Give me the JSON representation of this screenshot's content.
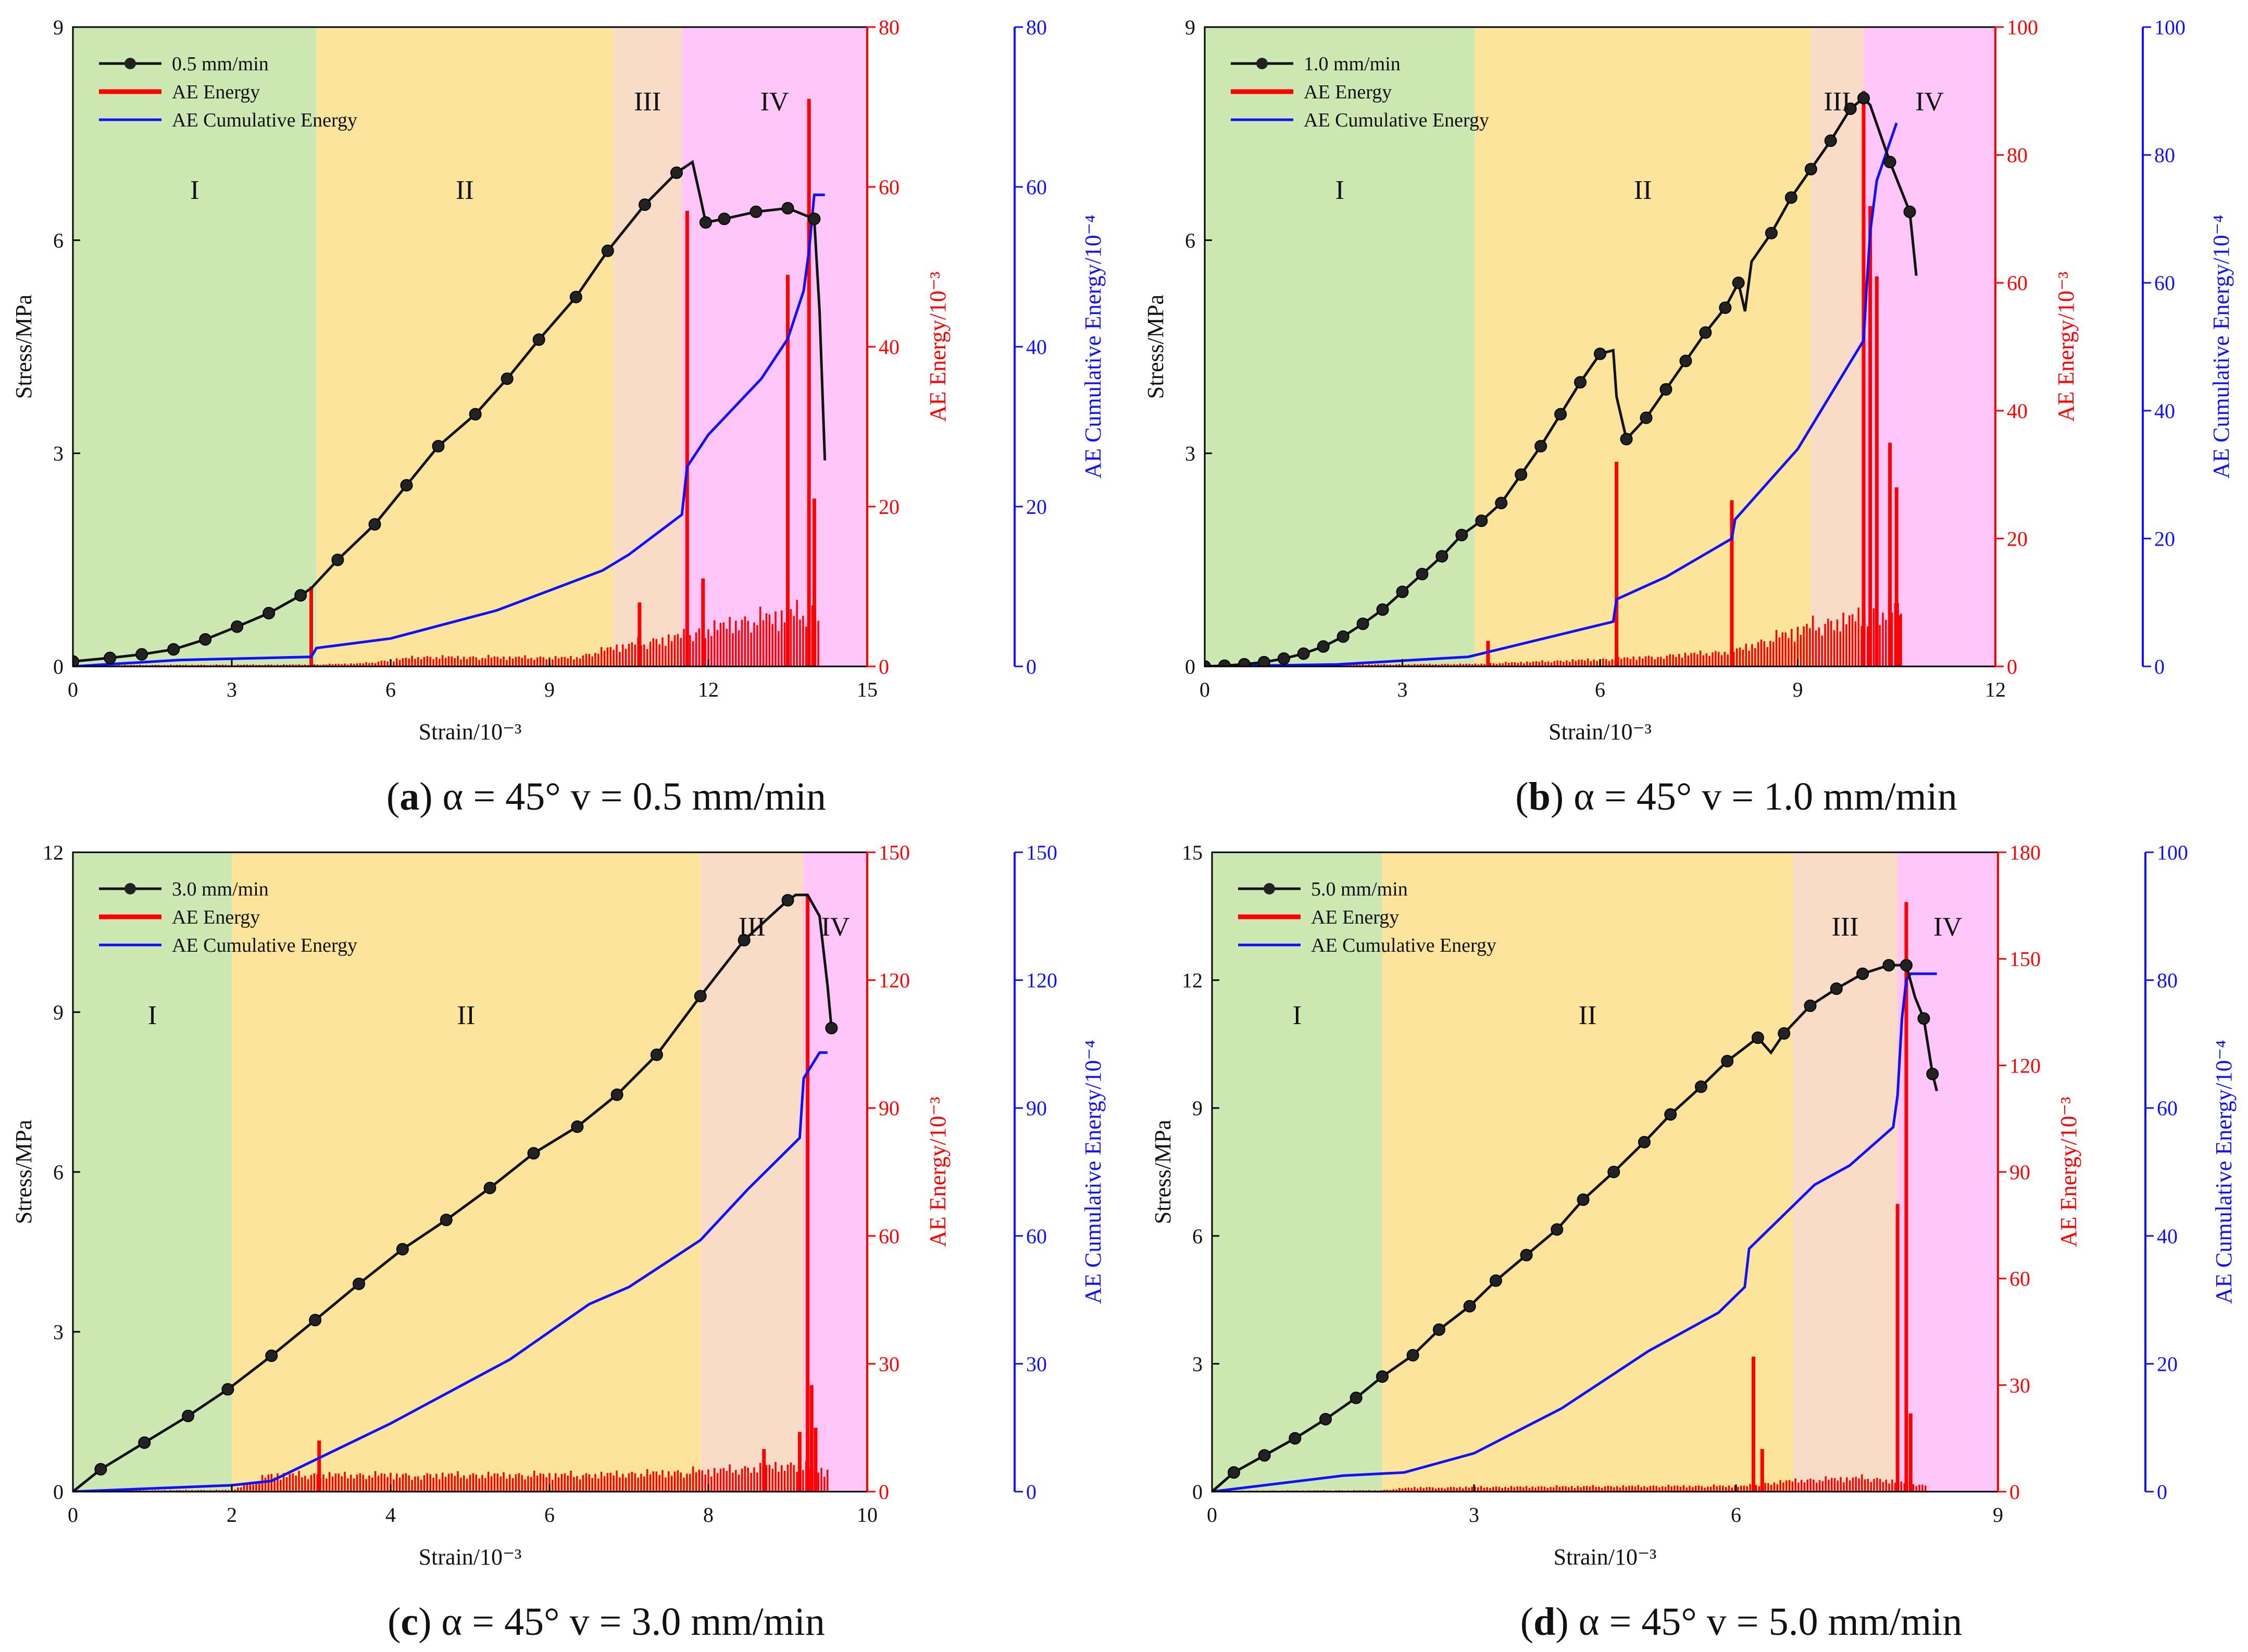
{
  "chart_data": [
    {
      "id": "a",
      "type": "line",
      "caption": {
        "letter": "a",
        "text": "α = 45° v = 0.5 mm/min"
      },
      "xlabel": "Strain/10⁻³",
      "ylabel": "Stress/MPa",
      "y2label": "AE Energy/10⁻³",
      "y3label": "AE Cumulative Energy/10⁻⁴",
      "xlim": [
        0,
        15
      ],
      "xticks": [
        0,
        3,
        6,
        9,
        12,
        15
      ],
      "ylim": [
        0,
        9
      ],
      "yticks": [
        0,
        3,
        6,
        9
      ],
      "y2lim": [
        0,
        80
      ],
      "y2ticks": [
        0,
        20,
        40,
        60,
        80
      ],
      "y3lim": [
        0,
        80
      ],
      "y3ticks": [
        0,
        20,
        40,
        60,
        80
      ],
      "legend": [
        "0.5 mm/min",
        "AE Energy",
        "AE Cumulative Energy"
      ],
      "stages": [
        {
          "label": "I",
          "from": 0,
          "to": 4.6,
          "color": "#cde8b3"
        },
        {
          "label": "II",
          "from": 4.6,
          "to": 10.2,
          "color": "#fce49a"
        },
        {
          "label": "III",
          "from": 10.2,
          "to": 11.5,
          "color": "#f9dcc8"
        },
        {
          "label": "IV",
          "from": 11.5,
          "to": 15,
          "color": "#fdc5f8"
        }
      ],
      "stress": {
        "x": [
          0,
          0.7,
          1.3,
          1.9,
          2.5,
          3.1,
          3.7,
          4.3,
          4.5,
          5.0,
          5.7,
          6.3,
          6.9,
          7.6,
          8.2,
          8.8,
          9.5,
          10.1,
          10.8,
          11.4,
          11.7,
          11.85,
          11.95,
          12.3,
          12.9,
          13.5,
          14.0,
          14.1,
          14.2
        ],
        "y": [
          0.07,
          0.12,
          0.17,
          0.24,
          0.38,
          0.56,
          0.75,
          1.0,
          1.1,
          1.5,
          2.0,
          2.55,
          3.1,
          3.55,
          4.05,
          4.6,
          5.2,
          5.85,
          6.5,
          6.95,
          7.1,
          6.6,
          6.25,
          6.3,
          6.4,
          6.45,
          6.3,
          5.0,
          2.9
        ],
        "marked": [
          0,
          0.7,
          1.3,
          1.9,
          2.5,
          3.1,
          3.7,
          4.3,
          5.0,
          5.7,
          6.3,
          6.9,
          7.6,
          8.2,
          8.8,
          9.5,
          10.1,
          10.8,
          11.4,
          11.95,
          12.3,
          12.9,
          13.5,
          14.0
        ]
      },
      "ae_energy": {
        "base": [
          [
            0,
            0.2
          ],
          [
            4.6,
            0.3
          ],
          [
            5.5,
            0.5
          ],
          [
            6.5,
            1.5
          ],
          [
            9.5,
            1.4
          ],
          [
            10.2,
            3
          ],
          [
            11.6,
            5
          ],
          [
            12.5,
            7
          ],
          [
            14.1,
            9
          ]
        ],
        "spikes": [
          [
            4.5,
            10
          ],
          [
            10.7,
            8
          ],
          [
            11.6,
            57
          ],
          [
            11.9,
            11
          ],
          [
            13.5,
            49
          ],
          [
            13.9,
            71
          ],
          [
            14.0,
            21
          ]
        ]
      },
      "ae_cumulative": {
        "x": [
          0,
          2,
          4.5,
          4.6,
          6,
          8,
          9,
          10,
          10.5,
          11.5,
          11.6,
          12,
          13,
          13.5,
          13.8,
          13.9,
          14.0,
          14.2
        ],
        "y": [
          0,
          0.8,
          1.2,
          2.3,
          3.5,
          7,
          9.5,
          12,
          14,
          19,
          25,
          29,
          36,
          41,
          47,
          52,
          59,
          59
        ]
      }
    },
    {
      "id": "b",
      "type": "line",
      "caption": {
        "letter": "b",
        "text": "α = 45° v = 1.0 mm/min"
      },
      "xlabel": "Strain/10⁻³",
      "ylabel": "Stress/MPa",
      "y2label": "AE Energy/10⁻³",
      "y3label": "AE Cumulative Energy/10⁻⁴",
      "xlim": [
        0,
        12
      ],
      "xticks": [
        0,
        3,
        6,
        9,
        12
      ],
      "ylim": [
        0,
        9
      ],
      "yticks": [
        0,
        3,
        6,
        9
      ],
      "y2lim": [
        0,
        100
      ],
      "y2ticks": [
        0,
        20,
        40,
        60,
        80,
        100
      ],
      "y3lim": [
        0,
        100
      ],
      "y3ticks": [
        0,
        20,
        40,
        60,
        80,
        100
      ],
      "legend": [
        "1.0 mm/min",
        "AE Energy",
        "AE Cumulative Energy"
      ],
      "stages": [
        {
          "label": "I",
          "from": 0,
          "to": 4.1,
          "color": "#cde8b3"
        },
        {
          "label": "II",
          "from": 4.1,
          "to": 9.2,
          "color": "#fce49a"
        },
        {
          "label": "III",
          "from": 9.2,
          "to": 10.0,
          "color": "#f9dcc8"
        },
        {
          "label": "IV",
          "from": 10.0,
          "to": 12,
          "color": "#fdc5f8"
        }
      ],
      "stress": {
        "x": [
          0,
          0.3,
          0.6,
          0.9,
          1.2,
          1.5,
          1.8,
          2.1,
          2.4,
          2.7,
          3.0,
          3.3,
          3.6,
          3.9,
          4.2,
          4.5,
          4.8,
          5.1,
          5.4,
          5.7,
          6.0,
          6.2,
          6.25,
          6.4,
          6.7,
          7.0,
          7.3,
          7.6,
          7.9,
          8.1,
          8.2,
          8.3,
          8.6,
          8.9,
          9.2,
          9.5,
          9.8,
          10.0,
          10.1,
          10.4,
          10.7,
          10.8
        ],
        "y": [
          0,
          0.01,
          0.03,
          0.06,
          0.11,
          0.18,
          0.28,
          0.42,
          0.6,
          0.8,
          1.05,
          1.3,
          1.55,
          1.85,
          2.05,
          2.3,
          2.7,
          3.1,
          3.55,
          4.0,
          4.4,
          4.45,
          3.8,
          3.2,
          3.5,
          3.9,
          4.3,
          4.7,
          5.05,
          5.4,
          5.0,
          5.7,
          6.1,
          6.6,
          7.0,
          7.4,
          7.85,
          8.0,
          7.9,
          7.1,
          6.4,
          5.5
        ],
        "marked": [
          0,
          0.3,
          0.6,
          0.9,
          1.2,
          1.5,
          1.8,
          2.1,
          2.4,
          2.7,
          3.0,
          3.3,
          3.6,
          3.9,
          4.2,
          4.5,
          4.8,
          5.1,
          5.4,
          5.7,
          6.0,
          6.4,
          6.7,
          7.0,
          7.3,
          7.6,
          7.9,
          8.1,
          8.6,
          8.9,
          9.2,
          9.5,
          9.8,
          10.0,
          10.4,
          10.7
        ]
      },
      "ae_energy": {
        "base": [
          [
            0,
            0.2
          ],
          [
            4.1,
            0.5
          ],
          [
            6.2,
            1.5
          ],
          [
            8,
            3
          ],
          [
            9.2,
            8
          ],
          [
            10.0,
            10
          ],
          [
            10.6,
            12
          ]
        ],
        "spikes": [
          [
            4.3,
            4
          ],
          [
            6.25,
            32
          ],
          [
            8.0,
            26
          ],
          [
            10.0,
            90
          ],
          [
            10.1,
            72
          ],
          [
            10.2,
            61
          ],
          [
            10.4,
            35
          ],
          [
            10.5,
            28
          ],
          [
            10.55,
            8
          ]
        ]
      },
      "ae_cumulative": {
        "x": [
          0,
          2,
          4,
          6.2,
          6.25,
          7,
          8,
          8.05,
          9,
          10.0,
          10.05,
          10.1,
          10.2,
          10.4,
          10.5
        ],
        "y": [
          0,
          0.3,
          1.5,
          7,
          10.5,
          14,
          20,
          23,
          34,
          51,
          60,
          68,
          76,
          82,
          85
        ]
      }
    },
    {
      "id": "c",
      "type": "line",
      "caption": {
        "letter": "c",
        "text": "α = 45° v = 3.0 mm/min"
      },
      "xlabel": "Strain/10⁻³",
      "ylabel": "Stress/MPa",
      "y2label": "AE Energy/10⁻³",
      "y3label": "AE Cumulative Energy/10⁻⁴",
      "xlim": [
        0,
        10
      ],
      "xticks": [
        0,
        2,
        4,
        6,
        8,
        10
      ],
      "ylim": [
        0,
        12
      ],
      "yticks": [
        0,
        3,
        6,
        9,
        12
      ],
      "y2lim": [
        0,
        150
      ],
      "y2ticks": [
        0,
        30,
        60,
        90,
        120,
        150
      ],
      "y3lim": [
        0,
        150
      ],
      "y3ticks": [
        0,
        30,
        60,
        90,
        120,
        150
      ],
      "legend": [
        "3.0 mm/min",
        "AE Energy",
        "AE Cumulative Energy"
      ],
      "stages": [
        {
          "label": "I",
          "from": 0,
          "to": 2.0,
          "color": "#cde8b3"
        },
        {
          "label": "II",
          "from": 2.0,
          "to": 7.9,
          "color": "#fce49a"
        },
        {
          "label": "III",
          "from": 7.9,
          "to": 9.2,
          "color": "#f9dcc8"
        },
        {
          "label": "IV",
          "from": 9.2,
          "to": 10,
          "color": "#fdc5f8"
        }
      ],
      "stress": {
        "x": [
          0,
          0.35,
          0.9,
          1.45,
          1.95,
          2.5,
          3.05,
          3.6,
          4.15,
          4.7,
          5.25,
          5.8,
          6.35,
          6.85,
          7.35,
          7.9,
          8.45,
          9.0,
          9.1,
          9.25,
          9.4,
          9.5,
          9.55
        ],
        "y": [
          0,
          0.42,
          0.92,
          1.42,
          1.92,
          2.55,
          3.22,
          3.9,
          4.55,
          5.1,
          5.7,
          6.35,
          6.85,
          7.45,
          8.2,
          9.3,
          10.35,
          11.1,
          11.2,
          11.2,
          10.8,
          9.5,
          8.7
        ],
        "marked": [
          0.35,
          0.9,
          1.45,
          1.95,
          2.5,
          3.05,
          3.6,
          4.15,
          4.7,
          5.25,
          5.8,
          6.35,
          6.85,
          7.35,
          7.9,
          8.45,
          9.0,
          9.55
        ]
      },
      "ae_energy": {
        "base": [
          [
            0,
            0.3
          ],
          [
            2.0,
            0.5
          ],
          [
            2.5,
            5
          ],
          [
            4.5,
            5
          ],
          [
            6.5,
            5
          ],
          [
            7.9,
            6
          ],
          [
            9.1,
            8
          ],
          [
            9.5,
            6
          ]
        ],
        "spikes": [
          [
            3.1,
            12
          ],
          [
            8.7,
            10
          ],
          [
            9.15,
            14
          ],
          [
            9.25,
            140
          ],
          [
            9.3,
            25
          ],
          [
            9.35,
            15
          ]
        ]
      },
      "ae_cumulative": {
        "x": [
          0,
          2,
          2.5,
          4,
          5.5,
          6.5,
          7,
          7.9,
          8.5,
          9.15,
          9.2,
          9.3,
          9.4,
          9.5
        ],
        "y": [
          0,
          1.5,
          2.5,
          16,
          31,
          44,
          48,
          59,
          71,
          83,
          97,
          100,
          103,
          103
        ]
      }
    },
    {
      "id": "d",
      "type": "line",
      "caption": {
        "letter": "d",
        "text": "α = 45° v = 5.0 mm/min"
      },
      "xlabel": "Strain/10⁻³",
      "ylabel": "Stress/MPa",
      "y2label": "AE Energy/10⁻³",
      "y3label": "AE Cumulative Energy/10⁻⁴",
      "xlim": [
        0,
        9
      ],
      "xticks": [
        0,
        3,
        6,
        9
      ],
      "ylim": [
        0,
        15
      ],
      "yticks": [
        0,
        3,
        6,
        9,
        12,
        15
      ],
      "y2lim": [
        0,
        180
      ],
      "y2ticks": [
        0,
        30,
        60,
        90,
        120,
        150,
        180
      ],
      "y3lim": [
        0,
        100
      ],
      "y3ticks": [
        0,
        20,
        40,
        60,
        80,
        100
      ],
      "legend": [
        "5.0 mm/min",
        "AE Energy",
        "AE Cumulative Energy"
      ],
      "stages": [
        {
          "label": "I",
          "from": 0,
          "to": 1.95,
          "color": "#cde8b3"
        },
        {
          "label": "II",
          "from": 1.95,
          "to": 6.65,
          "color": "#fce49a"
        },
        {
          "label": "III",
          "from": 6.65,
          "to": 7.85,
          "color": "#f9dcc8"
        },
        {
          "label": "IV",
          "from": 7.85,
          "to": 9,
          "color": "#fdc5f8"
        }
      ],
      "stress": {
        "x": [
          0,
          0.25,
          0.6,
          0.95,
          1.3,
          1.65,
          1.95,
          2.3,
          2.6,
          2.95,
          3.25,
          3.6,
          3.95,
          4.25,
          4.6,
          4.95,
          5.25,
          5.6,
          5.9,
          6.25,
          6.4,
          6.55,
          6.85,
          7.15,
          7.45,
          7.75,
          7.95,
          8.05,
          8.15,
          8.25,
          8.3
        ],
        "y": [
          0,
          0.45,
          0.85,
          1.25,
          1.7,
          2.2,
          2.7,
          3.2,
          3.8,
          4.35,
          4.95,
          5.55,
          6.15,
          6.85,
          7.5,
          8.2,
          8.85,
          9.5,
          10.1,
          10.65,
          10.3,
          10.75,
          11.4,
          11.8,
          12.15,
          12.35,
          12.35,
          11.6,
          11.1,
          9.8,
          9.4
        ],
        "marked": [
          0.25,
          0.6,
          0.95,
          1.3,
          1.65,
          1.95,
          2.3,
          2.6,
          2.95,
          3.25,
          3.6,
          3.95,
          4.25,
          4.6,
          4.95,
          5.25,
          5.6,
          5.9,
          6.25,
          6.55,
          6.85,
          7.15,
          7.45,
          7.75,
          7.95,
          8.15,
          8.25
        ]
      },
      "ae_energy": {
        "base": [
          [
            0,
            0.3
          ],
          [
            1.95,
            0.5
          ],
          [
            2.3,
            1.5
          ],
          [
            5,
            2
          ],
          [
            6.1,
            2
          ],
          [
            6.65,
            4
          ],
          [
            7.5,
            5
          ],
          [
            8.2,
            2
          ]
        ],
        "spikes": [
          [
            6.2,
            38
          ],
          [
            6.3,
            12
          ],
          [
            7.85,
            81
          ],
          [
            7.95,
            166
          ],
          [
            8.0,
            22
          ]
        ]
      },
      "ae_cumulative": {
        "x": [
          0,
          1.5,
          2.2,
          3,
          4,
          5,
          5.8,
          6.1,
          6.15,
          6.3,
          6.6,
          6.9,
          7.3,
          7.8,
          7.85,
          7.9,
          7.95,
          8.0,
          8.2,
          8.3
        ],
        "y": [
          0,
          2.5,
          3,
          6,
          13,
          22,
          28,
          32,
          38,
          40,
          44,
          48,
          51,
          57,
          62,
          74,
          80,
          81,
          81,
          81
        ]
      }
    }
  ]
}
